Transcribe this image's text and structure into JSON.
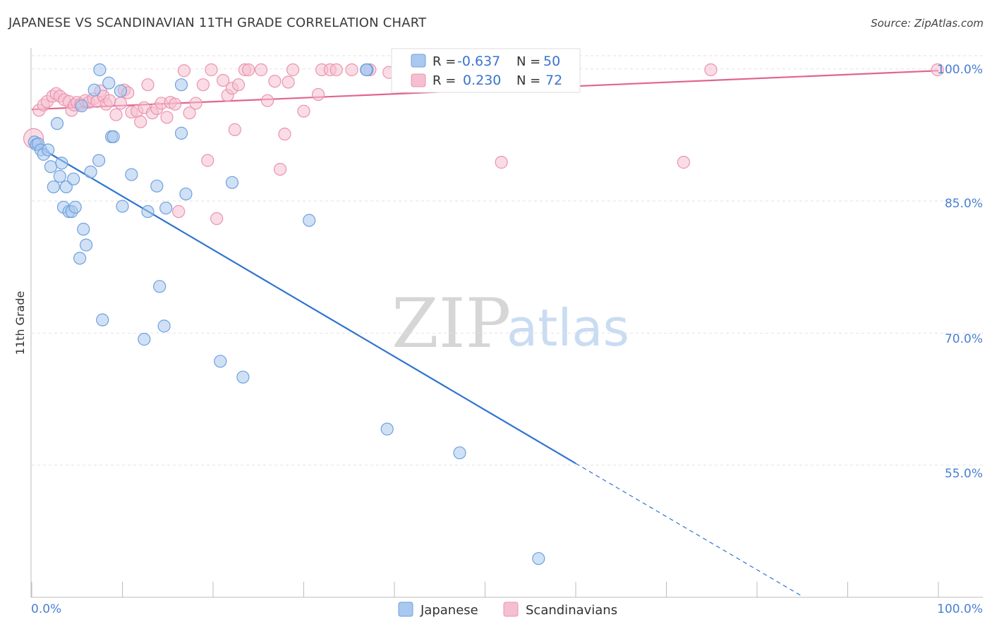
{
  "title": "JAPANESE VS SCANDINAVIAN 11TH GRADE CORRELATION CHART",
  "source": "Source: ZipAtlas.com",
  "watermark": {
    "zip": "ZIP",
    "atlas": "atlas"
  },
  "colors": {
    "japanese_fill": "#a9c8ef",
    "japanese_stroke": "#6fa0dd",
    "japanese_line": "#2f74d0",
    "scandinavian_fill": "#f5bfd0",
    "scandinavian_stroke": "#ea94b0",
    "scandinavian_line": "#e0658f",
    "axis_label": "#4a7fd4",
    "grid": "#e2e2e2"
  },
  "legend": {
    "rows": [
      {
        "r_label": "R =",
        "r_value": "-0.637",
        "n_label": "N =",
        "n_value": "50"
      },
      {
        "r_label": "R =",
        "r_value": "0.230",
        "n_label": "N =",
        "n_value": "72"
      }
    ]
  },
  "chart_data": {
    "type": "scatter",
    "title": "JAPANESE VS SCANDINAVIAN 11TH GRADE CORRELATION CHART",
    "xlabel": "",
    "ylabel": "11th Grade",
    "xlim": [
      0,
      100
    ],
    "ylim": [
      40,
      101.5
    ],
    "x_tick_labels": [
      "0.0%",
      "100.0%"
    ],
    "y_ticks": [
      55,
      70,
      85,
      100
    ],
    "y_tick_labels": [
      "55.0%",
      "70.0%",
      "85.0%",
      "100.0%"
    ],
    "grid": true,
    "legend_position": "top-center",
    "series": [
      {
        "name": "Japanese",
        "r": -0.637,
        "n": 50,
        "trend": {
          "x0": 0,
          "y0": 91.6,
          "x1": 60,
          "y1": 55.2,
          "dash_to_x": 85,
          "dash_to_y": 40.1
        },
        "points": [
          [
            0.3,
            91.7
          ],
          [
            0.5,
            91.4
          ],
          [
            0.7,
            91.5
          ],
          [
            1.0,
            90.8
          ],
          [
            1.3,
            90.3
          ],
          [
            1.8,
            90.8
          ],
          [
            2.1,
            88.9
          ],
          [
            2.4,
            86.6
          ],
          [
            2.8,
            93.8
          ],
          [
            3.1,
            87.8
          ],
          [
            3.3,
            89.3
          ],
          [
            3.5,
            84.3
          ],
          [
            3.8,
            86.6
          ],
          [
            4.1,
            83.8
          ],
          [
            4.4,
            83.8
          ],
          [
            4.6,
            87.5
          ],
          [
            4.8,
            84.3
          ],
          [
            5.3,
            78.5
          ],
          [
            5.5,
            95.8
          ],
          [
            5.7,
            81.8
          ],
          [
            6.0,
            80.0
          ],
          [
            6.5,
            88.3
          ],
          [
            6.9,
            97.6
          ],
          [
            7.4,
            89.6
          ],
          [
            7.5,
            99.9
          ],
          [
            7.8,
            71.5
          ],
          [
            8.5,
            98.4
          ],
          [
            8.8,
            92.3
          ],
          [
            9.0,
            92.3
          ],
          [
            9.8,
            97.5
          ],
          [
            10.0,
            84.4
          ],
          [
            11.0,
            88.0
          ],
          [
            12.4,
            69.3
          ],
          [
            12.8,
            83.8
          ],
          [
            13.8,
            86.7
          ],
          [
            14.1,
            75.3
          ],
          [
            14.6,
            70.8
          ],
          [
            14.8,
            84.2
          ],
          [
            16.5,
            92.7
          ],
          [
            16.5,
            98.2
          ],
          [
            17.0,
            85.8
          ],
          [
            20.8,
            66.8
          ],
          [
            22.1,
            87.1
          ],
          [
            23.3,
            65.0
          ],
          [
            30.6,
            82.8
          ],
          [
            37.0,
            99.9
          ],
          [
            39.2,
            59.1
          ],
          [
            47.2,
            56.4
          ],
          [
            55.9,
            44.4
          ],
          [
            36.9,
            99.9
          ]
        ]
      },
      {
        "name": "Scandinavians",
        "r": 0.23,
        "n": 72,
        "trend": {
          "x0": 0,
          "y0": 95.4,
          "x1": 100,
          "y1": 99.8
        },
        "points": [
          [
            0.2,
            92.1
          ],
          [
            0.8,
            95.3
          ],
          [
            1.3,
            95.9
          ],
          [
            1.7,
            96.3
          ],
          [
            2.3,
            96.9
          ],
          [
            2.7,
            97.2
          ],
          [
            3.1,
            96.9
          ],
          [
            3.6,
            96.5
          ],
          [
            4.1,
            96.3
          ],
          [
            4.4,
            95.3
          ],
          [
            4.7,
            95.9
          ],
          [
            5.0,
            96.2
          ],
          [
            5.4,
            96.0
          ],
          [
            5.9,
            96.4
          ],
          [
            6.3,
            96.2
          ],
          [
            6.8,
            96.6
          ],
          [
            7.2,
            96.3
          ],
          [
            7.6,
            97.5
          ],
          [
            7.9,
            96.9
          ],
          [
            8.2,
            96.0
          ],
          [
            8.6,
            96.4
          ],
          [
            9.3,
            94.8
          ],
          [
            9.8,
            96.1
          ],
          [
            10.2,
            97.6
          ],
          [
            10.6,
            97.3
          ],
          [
            11.0,
            95.1
          ],
          [
            11.6,
            95.2
          ],
          [
            12.0,
            94.0
          ],
          [
            12.4,
            95.6
          ],
          [
            12.8,
            98.2
          ],
          [
            13.3,
            95.0
          ],
          [
            13.8,
            95.5
          ],
          [
            14.3,
            96.1
          ],
          [
            14.9,
            94.5
          ],
          [
            15.3,
            96.2
          ],
          [
            15.8,
            96.0
          ],
          [
            16.2,
            83.8
          ],
          [
            16.8,
            99.8
          ],
          [
            17.4,
            95.0
          ],
          [
            18.1,
            96.1
          ],
          [
            18.9,
            98.2
          ],
          [
            19.4,
            89.6
          ],
          [
            19.8,
            99.9
          ],
          [
            20.4,
            83.0
          ],
          [
            21.1,
            98.7
          ],
          [
            21.6,
            97.0
          ],
          [
            22.1,
            97.8
          ],
          [
            22.4,
            93.1
          ],
          [
            22.8,
            98.2
          ],
          [
            23.5,
            99.9
          ],
          [
            23.9,
            99.9
          ],
          [
            25.3,
            99.9
          ],
          [
            26.0,
            96.4
          ],
          [
            26.8,
            98.6
          ],
          [
            27.4,
            88.6
          ],
          [
            27.9,
            92.6
          ],
          [
            28.3,
            98.5
          ],
          [
            28.8,
            99.9
          ],
          [
            30.0,
            95.2
          ],
          [
            31.6,
            97.1
          ],
          [
            32.0,
            99.9
          ],
          [
            32.9,
            99.9
          ],
          [
            33.6,
            99.9
          ],
          [
            35.3,
            99.9
          ],
          [
            37.3,
            99.9
          ],
          [
            39.4,
            99.6
          ],
          [
            47.4,
            99.9
          ],
          [
            51.0,
            99.9
          ],
          [
            51.8,
            89.4
          ],
          [
            71.9,
            89.4
          ],
          [
            74.9,
            99.9
          ],
          [
            99.9,
            99.9
          ]
        ]
      }
    ]
  }
}
